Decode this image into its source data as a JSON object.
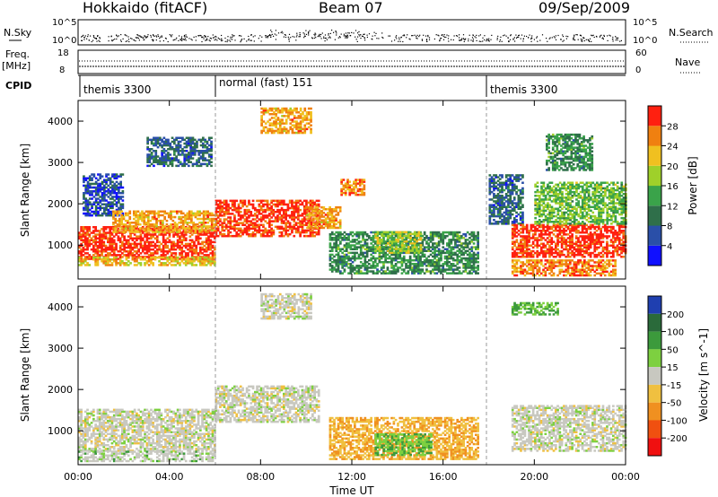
{
  "header": {
    "station": "Hokkaido (fitACF)",
    "beam": "Beam 07",
    "date": "09/Sep/2009"
  },
  "left_labels": {
    "nsky": "N.Sky",
    "freq": "Freq.",
    "freq_unit": "[MHz]",
    "cpid": "CPID"
  },
  "right_labels": {
    "nsearch": "N.Search",
    "nave": "Nave"
  },
  "nsky_ticks": [
    "10^5",
    "10^0"
  ],
  "nsearch_ticks": [
    "10^5",
    "10^0"
  ],
  "freq_ticks": [
    "18",
    "8"
  ],
  "nave_ticks": [
    "60",
    "0"
  ],
  "cpid_segments": [
    {
      "label": "themis 3300",
      "start": 0,
      "end": 6
    },
    {
      "label": "normal (fast) 151",
      "start": 6,
      "end": 18
    },
    {
      "label": "themis 3300",
      "start": 18,
      "end": 24
    }
  ],
  "x_ticks": [
    "00:00",
    "04:00",
    "08:00",
    "12:00",
    "16:00",
    "20:00",
    "00:00"
  ],
  "x_label": "Time UT",
  "y_ticks": [
    "1000",
    "2000",
    "3000",
    "4000"
  ],
  "y_label": "Slant Range [km]",
  "power_colorbar": {
    "label": "Power [dB]",
    "ticks": [
      "4",
      "8",
      "12",
      "16",
      "20",
      "24",
      "28"
    ],
    "colors": [
      "#1010ff",
      "#2a4fa8",
      "#2f6f4a",
      "#3aa34a",
      "#9fd02a",
      "#f0c020",
      "#f08010",
      "#ff2010"
    ]
  },
  "velocity_colorbar": {
    "label": "Velocity [m s^-1]",
    "ticks": [
      "200",
      "100",
      "50",
      "15",
      "-15",
      "-50",
      "-100",
      "-200"
    ],
    "colors": [
      "#1f3fb0",
      "#2a6a3a",
      "#3c9a3c",
      "#7dd040",
      "#c8c8c0",
      "#f0c040",
      "#f09020",
      "#f05010",
      "#f01010"
    ]
  },
  "chart_data": {
    "type": "heatmap",
    "title": "Hokkaido (fitACF) Beam 07 09/Sep/2009",
    "xlabel": "Time UT",
    "ylabel": "Slant Range [km]",
    "xlim": [
      0,
      24
    ],
    "ylim": [
      180,
      4500
    ],
    "mode_change_times": [
      6,
      18
    ],
    "power_scatter": [
      {
        "t0": 0,
        "t1": 6,
        "r0": 650,
        "r1": 1450,
        "level": 28
      },
      {
        "t0": 0,
        "t1": 6,
        "r0": 500,
        "r1": 700,
        "level": 20
      },
      {
        "t0": 0.2,
        "t1": 2.0,
        "r0": 1700,
        "r1": 2700,
        "level": 4
      },
      {
        "t0": 1.5,
        "t1": 6,
        "r0": 1300,
        "r1": 1800,
        "level": 22
      },
      {
        "t0": 3.0,
        "t1": 5.8,
        "r0": 2900,
        "r1": 3600,
        "level": 6
      },
      {
        "t0": 6,
        "t1": 10.5,
        "r0": 1200,
        "r1": 2100,
        "level": 28
      },
      {
        "t0": 8,
        "t1": 10.2,
        "r0": 3700,
        "r1": 4300,
        "level": 22
      },
      {
        "t0": 10,
        "t1": 11.5,
        "r0": 1400,
        "r1": 1900,
        "level": 22
      },
      {
        "t0": 11.5,
        "t1": 12.5,
        "r0": 2200,
        "r1": 2600,
        "level": 24
      },
      {
        "t0": 11,
        "t1": 17.5,
        "r0": 300,
        "r1": 1300,
        "level": 10
      },
      {
        "t0": 13,
        "t1": 15,
        "r0": 800,
        "r1": 1300,
        "level": 16
      },
      {
        "t0": 18,
        "t1": 19.5,
        "r0": 1500,
        "r1": 2700,
        "level": 6
      },
      {
        "t0": 19,
        "t1": 24,
        "r0": 700,
        "r1": 1500,
        "level": 28
      },
      {
        "t0": 19,
        "t1": 23.5,
        "r0": 250,
        "r1": 650,
        "level": 24
      },
      {
        "t0": 20,
        "t1": 24,
        "r0": 1500,
        "r1": 2500,
        "level": 14
      },
      {
        "t0": 20.5,
        "t1": 22.5,
        "r0": 2800,
        "r1": 3700,
        "level": 10
      }
    ],
    "velocity_scatter": [
      {
        "t0": 0,
        "t1": 6,
        "r0": 500,
        "r1": 1500,
        "vel": 0
      },
      {
        "t0": 0,
        "t1": 6,
        "r0": 250,
        "r1": 500,
        "vel": 20
      },
      {
        "t0": 6,
        "t1": 10.5,
        "r0": 1200,
        "r1": 2100,
        "vel": 0
      },
      {
        "t0": 8,
        "t1": 10.2,
        "r0": 3700,
        "r1": 4300,
        "vel": 0
      },
      {
        "t0": 11,
        "t1": 17.5,
        "r0": 300,
        "r1": 1300,
        "vel": -30
      },
      {
        "t0": 13,
        "t1": 15.5,
        "r0": 400,
        "r1": 900,
        "vel": 30
      },
      {
        "t0": 19,
        "t1": 24,
        "r0": 500,
        "r1": 1600,
        "vel": 0
      },
      {
        "t0": 19,
        "t1": 21,
        "r0": 3800,
        "r1": 4100,
        "vel": 40
      }
    ]
  }
}
